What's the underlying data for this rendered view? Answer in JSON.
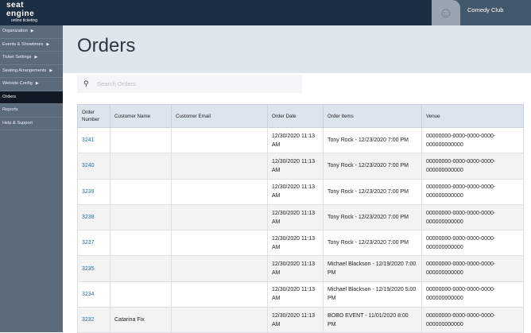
{
  "app": {
    "logo_line1": "seat",
    "logo_line2": "engine",
    "logo_tag": "online ticketing",
    "venue_name": "Comedy Club"
  },
  "sidebar": {
    "items": [
      {
        "label": "Organization",
        "arrow": true
      },
      {
        "label": "Events & Showtimes",
        "arrow": true
      },
      {
        "label": "Ticket Settings",
        "arrow": true
      },
      {
        "label": "Seating Arrangements",
        "arrow": true
      },
      {
        "label": "Website Config",
        "arrow": true
      },
      {
        "label": "Orders",
        "active": true
      },
      {
        "label": "Reports"
      },
      {
        "label": "Help & Support"
      }
    ]
  },
  "page": {
    "title": "Orders",
    "search_placeholder": "Search Orders"
  },
  "table": {
    "columns": [
      "Order Number",
      "Customer Name",
      "Customer Email",
      "Order Date",
      "Order Items",
      "Venue"
    ],
    "rows": [
      [
        "3241",
        "",
        "",
        "12/30/2020 11:13 AM",
        "Tony Rock - 12/23/2020 7:00 PM",
        "00000000-0000-0000-0000-000000000000"
      ],
      [
        "3240",
        "",
        "",
        "12/30/2020 11:13 AM",
        "Tony Rock - 12/23/2020 7:00 PM",
        "00000000-0000-0000-0000-000000000000"
      ],
      [
        "3239",
        "",
        "",
        "12/30/2020 11:13 AM",
        "Tony Rock - 12/23/2020 7:00 PM",
        "00000000-0000-0000-0000-000000000000"
      ],
      [
        "3238",
        "",
        "",
        "12/30/2020 11:13 AM",
        "Tony Rock - 12/23/2020 7:00 PM",
        "00000000-0000-0000-0000-000000000000"
      ],
      [
        "3237",
        "",
        "",
        "12/30/2020 11:13 AM",
        "Tony Rock - 12/23/2020 7:00 PM",
        "00000000-0000-0000-0000-000000000000"
      ],
      [
        "3235",
        "",
        "",
        "12/30/2020 11:13 AM",
        "Michael Blackson - 12/19/2020 7:00 PM",
        "00000000-0000-0000-0000-000000000000"
      ],
      [
        "3234",
        "",
        "",
        "12/30/2020 11:13 AM",
        "Michael Blackson - 12/19/2020 5:00 PM",
        "00000000-0000-0000-0000-000000000000"
      ],
      [
        "3232",
        "Catarina Fix",
        "",
        "12/30/2020 11:13 AM",
        "BOBO EVENT - 11/01/2020 8:00 PM",
        "00000000-0000-0000-0000-000000000000"
      ]
    ]
  }
}
